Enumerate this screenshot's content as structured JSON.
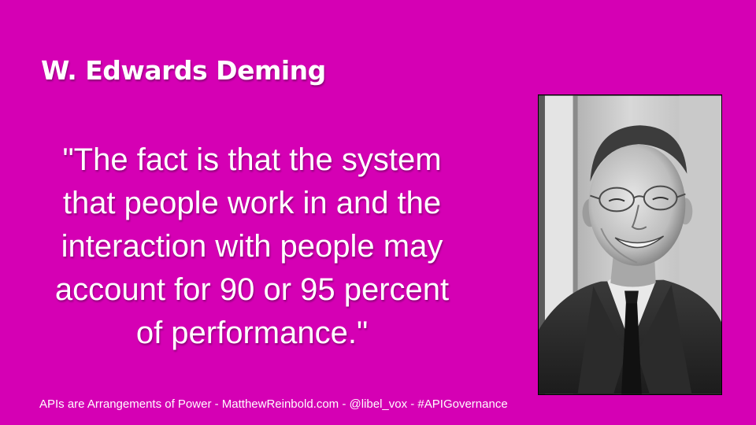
{
  "slide": {
    "title": "W. Edwards Deming",
    "quote_lines": [
      "\"The fact is that the system",
      "that people work in and the",
      "interaction with people may",
      "account for 90 or 95 percent",
      "of performance.\""
    ],
    "footer": "APIs are Arrangements of Power - MatthewReinbold.com - @libel_vox - #APIGovernance",
    "photo": {
      "description_icon": "portrait-photo"
    }
  },
  "colors": {
    "background": "#d500b4",
    "text": "#ffffff"
  }
}
